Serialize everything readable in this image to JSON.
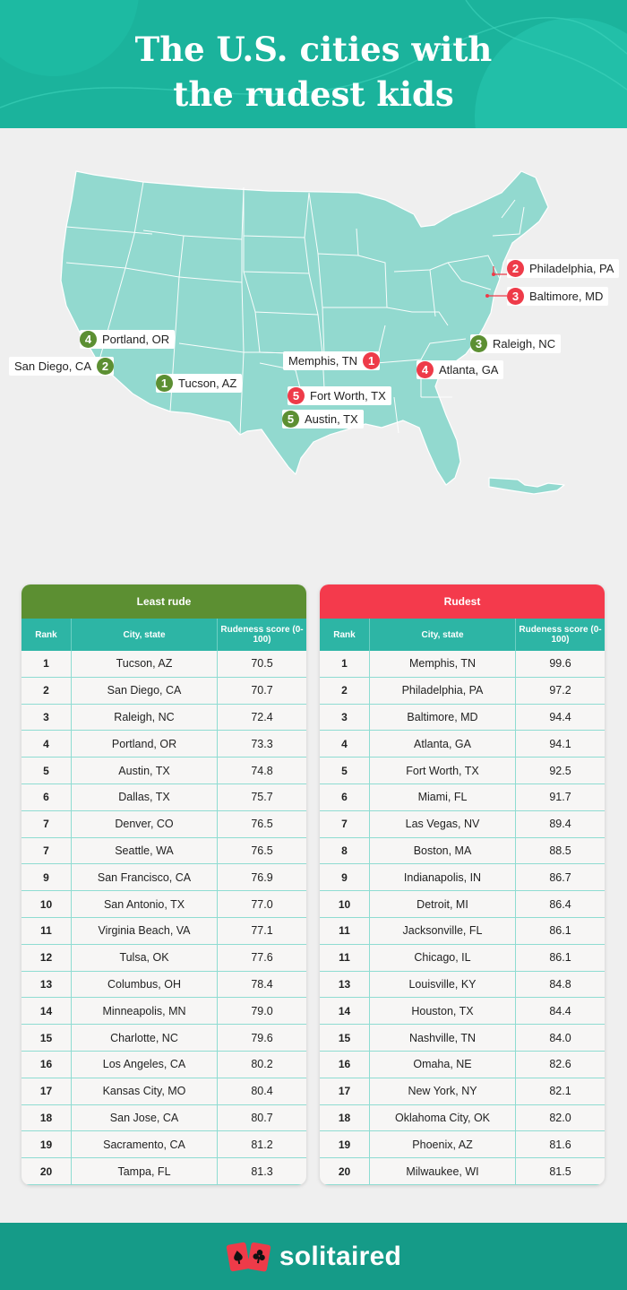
{
  "header": {
    "title_line1": "The U.S. cities with",
    "title_line2": "the rudest kids"
  },
  "colors": {
    "teal": "#1bb39c",
    "least_rude": "#5c8f32",
    "rudest": "#f43a4c",
    "map_fill": "#92d9cf"
  },
  "markers": [
    {
      "rank": "4",
      "city": "Portland, OR",
      "group": "least"
    },
    {
      "rank": "2",
      "city": "Philadelphia, PA",
      "group": "rudest"
    },
    {
      "rank": "3",
      "city": "Baltimore, MD",
      "group": "rudest"
    },
    {
      "rank": "3",
      "city": "Raleigh, NC",
      "group": "least"
    },
    {
      "rank": "1",
      "city": "Memphis, TN",
      "group": "rudest"
    },
    {
      "rank": "4",
      "city": "Atlanta, GA",
      "group": "rudest"
    },
    {
      "rank": "2",
      "city": "San Diego, CA",
      "group": "least"
    },
    {
      "rank": "1",
      "city": "Tucson, AZ",
      "group": "least"
    },
    {
      "rank": "5",
      "city": "Fort Worth, TX",
      "group": "rudest"
    },
    {
      "rank": "5",
      "city": "Austin, TX",
      "group": "least"
    }
  ],
  "tables": {
    "least": {
      "caption": "Least rude",
      "headers": [
        "Rank",
        "City, state",
        "Rudeness score (0-100)"
      ],
      "rows": [
        [
          "1",
          "Tucson, AZ",
          "70.5"
        ],
        [
          "2",
          "San Diego, CA",
          "70.7"
        ],
        [
          "3",
          "Raleigh, NC",
          "72.4"
        ],
        [
          "4",
          "Portland, OR",
          "73.3"
        ],
        [
          "5",
          "Austin, TX",
          "74.8"
        ],
        [
          "6",
          "Dallas, TX",
          "75.7"
        ],
        [
          "7",
          "Denver, CO",
          "76.5"
        ],
        [
          "7",
          "Seattle, WA",
          "76.5"
        ],
        [
          "9",
          "San Francisco, CA",
          "76.9"
        ],
        [
          "10",
          "San Antonio, TX",
          "77.0"
        ],
        [
          "11",
          "Virginia Beach, VA",
          "77.1"
        ],
        [
          "12",
          "Tulsa, OK",
          "77.6"
        ],
        [
          "13",
          "Columbus, OH",
          "78.4"
        ],
        [
          "14",
          "Minneapolis, MN",
          "79.0"
        ],
        [
          "15",
          "Charlotte, NC",
          "79.6"
        ],
        [
          "16",
          "Los Angeles, CA",
          "80.2"
        ],
        [
          "17",
          "Kansas City, MO",
          "80.4"
        ],
        [
          "18",
          "San Jose, CA",
          "80.7"
        ],
        [
          "19",
          "Sacramento, CA",
          "81.2"
        ],
        [
          "20",
          "Tampa, FL",
          "81.3"
        ]
      ]
    },
    "rudest": {
      "caption": "Rudest",
      "headers": [
        "Rank",
        "City, state",
        "Rudeness score (0-100)"
      ],
      "rows": [
        [
          "1",
          "Memphis, TN",
          "99.6"
        ],
        [
          "2",
          "Philadelphia, PA",
          "97.2"
        ],
        [
          "3",
          "Baltimore, MD",
          "94.4"
        ],
        [
          "4",
          "Atlanta, GA",
          "94.1"
        ],
        [
          "5",
          "Fort Worth, TX",
          "92.5"
        ],
        [
          "6",
          "Miami, FL",
          "91.7"
        ],
        [
          "7",
          "Las Vegas, NV",
          "89.4"
        ],
        [
          "8",
          "Boston, MA",
          "88.5"
        ],
        [
          "9",
          "Indianapolis, IN",
          "86.7"
        ],
        [
          "10",
          "Detroit, MI",
          "86.4"
        ],
        [
          "11",
          "Jacksonville, FL",
          "86.1"
        ],
        [
          "11",
          "Chicago, IL",
          "86.1"
        ],
        [
          "13",
          "Louisville, KY",
          "84.8"
        ],
        [
          "14",
          "Houston, TX",
          "84.4"
        ],
        [
          "15",
          "Nashville, TN",
          "84.0"
        ],
        [
          "16",
          "Omaha, NE",
          "82.6"
        ],
        [
          "17",
          "New York, NY",
          "82.1"
        ],
        [
          "18",
          "Oklahoma City, OK",
          "82.0"
        ],
        [
          "19",
          "Phoenix, AZ",
          "81.6"
        ],
        [
          "20",
          "Milwaukee, WI",
          "81.5"
        ]
      ]
    }
  },
  "footer": {
    "brand": "solitaired"
  }
}
